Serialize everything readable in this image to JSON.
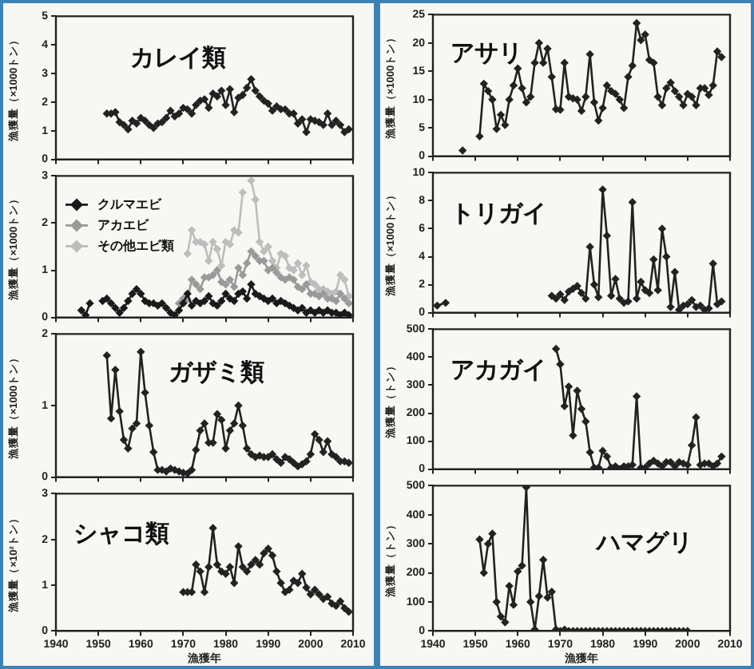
{
  "chart_data": [
    {
      "type": "line",
      "title": "カレイ類",
      "ylabel": "漁獲量（×1000トン）",
      "xlim": [
        1940,
        2010
      ],
      "xticks": [
        1940,
        1950,
        1960,
        1970,
        1980,
        1990,
        2000,
        2010
      ],
      "ylim": [
        0,
        5
      ],
      "yticks": [
        0,
        1,
        2,
        3,
        4,
        5
      ],
      "tick_labels": "y",
      "marker": "diamond",
      "color": "#222222",
      "x": [
        1952,
        1953,
        1954,
        1955,
        1956,
        1957,
        1958,
        1959,
        1960,
        1961,
        1962,
        1963,
        1964,
        1965,
        1966,
        1967,
        1968,
        1969,
        1970,
        1971,
        1972,
        1973,
        1974,
        1975,
        1976,
        1977,
        1978,
        1979,
        1980,
        1981,
        1982,
        1983,
        1984,
        1985,
        1986,
        1987,
        1988,
        1989,
        1990,
        1991,
        1992,
        1993,
        1994,
        1995,
        1996,
        1997,
        1998,
        1999,
        2000,
        2001,
        2002,
        2003,
        2004,
        2005,
        2006,
        2007,
        2008,
        2009
      ],
      "values": [
        1.6,
        1.6,
        1.65,
        1.3,
        1.2,
        1.05,
        1.35,
        1.25,
        1.45,
        1.35,
        1.2,
        1.1,
        1.25,
        1.3,
        1.45,
        1.7,
        1.5,
        1.6,
        1.8,
        1.75,
        1.6,
        1.9,
        2.05,
        2.1,
        1.8,
        2.3,
        2.2,
        2.4,
        1.9,
        2.45,
        1.65,
        2.15,
        2.25,
        2.5,
        2.8,
        2.4,
        2.2,
        2.05,
        1.95,
        1.7,
        1.85,
        1.75,
        1.75,
        1.6,
        1.6,
        1.25,
        1.4,
        0.95,
        1.4,
        1.35,
        1.3,
        1.2,
        1.6,
        1.2,
        1.35,
        1.2,
        0.95,
        1.05
      ]
    },
    {
      "type": "line",
      "ylabel": "漁獲量（×1000トン）",
      "xlim": [
        1940,
        2010
      ],
      "xticks": [
        1940,
        1950,
        1960,
        1970,
        1980,
        1990,
        2000,
        2010
      ],
      "ylim": [
        0,
        3
      ],
      "yticks": [
        0,
        1,
        2,
        3
      ],
      "tick_labels": "y",
      "marker": "diamond",
      "legend": "top left",
      "x": [
        1946,
        1947,
        1948,
        1949,
        1950,
        1951,
        1952,
        1953,
        1954,
        1955,
        1956,
        1957,
        1958,
        1959,
        1960,
        1961,
        1962,
        1963,
        1964,
        1965,
        1966,
        1967,
        1968,
        1969,
        1970,
        1971,
        1972,
        1973,
        1974,
        1975,
        1976,
        1977,
        1978,
        1979,
        1980,
        1981,
        1982,
        1983,
        1984,
        1985,
        1986,
        1987,
        1988,
        1989,
        1990,
        1991,
        1992,
        1993,
        1994,
        1995,
        1996,
        1997,
        1998,
        1999,
        2000,
        2001,
        2002,
        2003,
        2004,
        2005,
        2006,
        2007,
        2008,
        2009
      ],
      "series": [
        {
          "name": "クルマエビ",
          "color": "#1a1a1a",
          "values": [
            0.15,
            0.05,
            0.3,
            null,
            null,
            0.35,
            0.4,
            0.3,
            0.2,
            0.1,
            0.2,
            0.35,
            0.5,
            0.6,
            0.5,
            0.35,
            0.3,
            0.3,
            0.25,
            0.3,
            0.2,
            0.1,
            0.05,
            0.15,
            0.3,
            0.5,
            0.25,
            0.35,
            0.3,
            0.35,
            0.45,
            0.3,
            0.25,
            0.35,
            0.5,
            0.4,
            0.35,
            0.5,
            0.55,
            0.4,
            0.7,
            0.5,
            0.45,
            0.4,
            0.35,
            0.4,
            0.3,
            0.35,
            0.3,
            0.25,
            0.2,
            0.15,
            0.2,
            0.1,
            0.15,
            0.1,
            0.15,
            0.1,
            0.15,
            0.1,
            0.1,
            0.05,
            0.1,
            0.05
          ]
        },
        {
          "name": "アカエビ",
          "color": "#9a9a9a",
          "values": [
            null,
            null,
            null,
            null,
            null,
            null,
            null,
            null,
            null,
            null,
            null,
            null,
            null,
            null,
            null,
            null,
            null,
            null,
            null,
            null,
            null,
            null,
            null,
            0.3,
            0.4,
            0.38,
            0.8,
            0.7,
            0.6,
            0.85,
            0.85,
            0.9,
            1.0,
            0.75,
            0.7,
            0.8,
            0.65,
            1.05,
            0.9,
            1.15,
            1.4,
            1.3,
            1.2,
            1.2,
            1.0,
            1.05,
            0.95,
            0.85,
            0.8,
            0.85,
            0.8,
            0.65,
            0.6,
            0.7,
            0.5,
            0.5,
            0.45,
            0.5,
            0.4,
            0.4,
            0.35,
            0.5,
            0.4,
            0.3
          ]
        },
        {
          "name": "その他エビ類",
          "color": "#bdbdbd",
          "values": [
            null,
            null,
            null,
            null,
            null,
            null,
            null,
            null,
            null,
            null,
            null,
            null,
            null,
            null,
            null,
            null,
            null,
            null,
            null,
            null,
            null,
            null,
            null,
            null,
            null,
            1.35,
            1.85,
            1.6,
            1.6,
            1.55,
            1.2,
            1.6,
            1.45,
            1.1,
            1.6,
            1.55,
            1.85,
            1.8,
            2.65,
            null,
            2.9,
            2.5,
            1.6,
            1.4,
            1.5,
            1.2,
            1.05,
            1.35,
            1.3,
            1.05,
            1.0,
            1.15,
            0.9,
            1.1,
            0.75,
            0.7,
            0.6,
            0.6,
            0.55,
            0.5,
            0.55,
            0.9,
            0.8,
            0.45
          ]
        }
      ]
    },
    {
      "type": "line",
      "title": "ガザミ類",
      "ylabel": "漁獲量（×1000トン）",
      "xlim": [
        1940,
        2010
      ],
      "xticks": [
        1940,
        1950,
        1960,
        1970,
        1980,
        1990,
        2000,
        2010
      ],
      "ylim": [
        0,
        2
      ],
      "yticks": [
        0,
        1,
        2
      ],
      "tick_labels": "y",
      "marker": "diamond",
      "color": "#222222",
      "x": [
        1952,
        1953,
        1954,
        1955,
        1956,
        1957,
        1958,
        1959,
        1960,
        1961,
        1962,
        1963,
        1964,
        1965,
        1966,
        1967,
        1968,
        1969,
        1970,
        1971,
        1972,
        1973,
        1974,
        1975,
        1976,
        1977,
        1978,
        1979,
        1980,
        1981,
        1982,
        1983,
        1984,
        1985,
        1986,
        1987,
        1988,
        1989,
        1990,
        1991,
        1992,
        1993,
        1994,
        1995,
        1996,
        1997,
        1998,
        1999,
        2000,
        2001,
        2002,
        2003,
        2004,
        2005,
        2006,
        2007,
        2008,
        2009
      ],
      "values": [
        1.7,
        0.82,
        1.5,
        0.92,
        0.52,
        0.4,
        0.68,
        0.75,
        1.75,
        1.18,
        0.72,
        0.35,
        0.1,
        0.1,
        0.08,
        0.12,
        0.1,
        0.08,
        0.06,
        0.05,
        0.1,
        0.38,
        0.65,
        0.75,
        0.48,
        0.48,
        0.88,
        0.8,
        0.4,
        0.65,
        0.75,
        1.0,
        0.72,
        0.4,
        0.32,
        0.28,
        0.3,
        0.28,
        0.28,
        0.32,
        0.25,
        0.2,
        0.28,
        0.25,
        0.2,
        0.15,
        0.18,
        0.22,
        0.32,
        0.6,
        0.52,
        0.35,
        0.5,
        0.32,
        0.28,
        0.22,
        0.22,
        0.2
      ]
    },
    {
      "type": "line",
      "title": "シャコ類",
      "ylabel": "漁獲量（×10²トン）",
      "xlabel": "漁獲年",
      "xlim": [
        1940,
        2010
      ],
      "xticks": [
        1940,
        1950,
        1960,
        1970,
        1980,
        1990,
        2000,
        2010
      ],
      "ylim": [
        0,
        3
      ],
      "yticks": [
        0,
        1,
        2,
        3
      ],
      "marker": "diamond",
      "color": "#222222",
      "x": [
        1970,
        1971,
        1972,
        1973,
        1974,
        1975,
        1976,
        1977,
        1978,
        1979,
        1980,
        1981,
        1982,
        1983,
        1984,
        1985,
        1986,
        1987,
        1988,
        1989,
        1990,
        1991,
        1992,
        1993,
        1994,
        1995,
        1996,
        1997,
        1998,
        1999,
        2000,
        2001,
        2002,
        2003,
        2004,
        2005,
        2006,
        2007,
        2008,
        2009
      ],
      "values": [
        0.85,
        0.85,
        0.85,
        1.45,
        1.3,
        0.85,
        1.4,
        2.25,
        1.45,
        1.3,
        1.25,
        1.4,
        1.05,
        1.85,
        1.4,
        1.3,
        1.45,
        1.55,
        1.45,
        1.7,
        1.8,
        1.65,
        1.3,
        1.05,
        0.85,
        0.9,
        1.1,
        1.05,
        1.25,
        0.95,
        0.8,
        0.9,
        0.8,
        0.7,
        0.75,
        0.6,
        0.55,
        0.65,
        0.5,
        0.42
      ]
    },
    {
      "type": "line",
      "title": "アサリ",
      "ylabel": "漁獲量（×1000トン）",
      "xlim": [
        1940,
        2010
      ],
      "xticks": [
        1940,
        1950,
        1960,
        1970,
        1980,
        1990,
        2000,
        2010
      ],
      "ylim": [
        0,
        25
      ],
      "yticks": [
        0,
        5,
        10,
        15,
        20,
        25
      ],
      "tick_labels": "y",
      "marker": "diamond",
      "color": "#222222",
      "x": [
        1947,
        1948,
        1949,
        1950,
        1951,
        1952,
        1953,
        1954,
        1955,
        1956,
        1957,
        1958,
        1959,
        1960,
        1961,
        1962,
        1963,
        1964,
        1965,
        1966,
        1967,
        1968,
        1969,
        1970,
        1971,
        1972,
        1973,
        1974,
        1975,
        1976,
        1977,
        1978,
        1979,
        1980,
        1981,
        1982,
        1983,
        1984,
        1985,
        1986,
        1987,
        1988,
        1989,
        1990,
        1991,
        1992,
        1993,
        1994,
        1995,
        1996,
        1997,
        1998,
        1999,
        2000,
        2001,
        2002,
        2003,
        2004,
        2005,
        2006,
        2007,
        2008
      ],
      "values": [
        1.0,
        null,
        null,
        null,
        3.5,
        12.8,
        11.5,
        10,
        4.8,
        7.3,
        5.5,
        10,
        12.5,
        15.5,
        12,
        9.5,
        10.5,
        16.5,
        20,
        16.5,
        19,
        14,
        8.3,
        8.2,
        16.5,
        10.5,
        10.2,
        10,
        8,
        10.5,
        18,
        9.5,
        6.3,
        8.5,
        12.5,
        11.5,
        11,
        10,
        8.5,
        14,
        16,
        23.5,
        20.5,
        21.5,
        17,
        16.5,
        10.5,
        9,
        12,
        13,
        11.5,
        10.5,
        9,
        11,
        10.5,
        9,
        12,
        12,
        10.8,
        12.5,
        18.5,
        17.5
      ]
    },
    {
      "type": "line",
      "title": "トリガイ",
      "ylabel": "漁獲量（×1000トン）",
      "xlim": [
        1940,
        2010
      ],
      "xticks": [
        1940,
        1950,
        1960,
        1970,
        1980,
        1990,
        2000,
        2010
      ],
      "ylim": [
        0,
        10
      ],
      "yticks": [
        0,
        2,
        4,
        6,
        8,
        10
      ],
      "tick_labels": "y",
      "marker": "diamond",
      "color": "#222222",
      "x": [
        1941,
        1943,
        1944,
        1968,
        1969,
        1970,
        1971,
        1972,
        1973,
        1974,
        1975,
        1976,
        1977,
        1978,
        1979,
        1980,
        1981,
        1982,
        1983,
        1984,
        1985,
        1986,
        1987,
        1988,
        1989,
        1990,
        1991,
        1992,
        1993,
        1994,
        1995,
        1996,
        1997,
        1998,
        1999,
        2000,
        2001,
        2002,
        2003,
        2004,
        2005,
        2006,
        2007,
        2008
      ],
      "values": [
        0.5,
        0.7,
        null,
        1.2,
        1.0,
        1.3,
        0.9,
        1.5,
        1.7,
        1.9,
        1.4,
        1.0,
        4.7,
        2.0,
        1.1,
        8.8,
        5.5,
        1.2,
        2.4,
        1.0,
        0.7,
        0.8,
        7.9,
        1.0,
        2.2,
        1.6,
        1.4,
        3.8,
        1.6,
        6.0,
        4.0,
        0.4,
        2.9,
        0.2,
        0.5,
        0.6,
        0.9,
        0.4,
        0.5,
        0.2,
        0.3,
        3.5,
        0.6,
        0.8
      ]
    },
    {
      "type": "line",
      "title": "アカガイ",
      "ylabel": "漁獲量（トン）",
      "xlim": [
        1940,
        2010
      ],
      "xticks": [
        1940,
        1950,
        1960,
        1970,
        1980,
        1990,
        2000,
        2010
      ],
      "ylim": [
        0,
        500
      ],
      "yticks": [
        0,
        100,
        200,
        300,
        400,
        500
      ],
      "tick_labels": "y",
      "marker": "diamond",
      "color": "#222222",
      "x": [
        1969,
        1970,
        1971,
        1972,
        1973,
        1974,
        1975,
        1976,
        1977,
        1978,
        1979,
        1980,
        1981,
        1982,
        1983,
        1984,
        1985,
        1986,
        1987,
        1988,
        1989,
        1990,
        1991,
        1992,
        1993,
        1994,
        1995,
        1996,
        1997,
        1998,
        1999,
        2000,
        2001,
        2002,
        2003,
        2004,
        2005,
        2006,
        2007,
        2008
      ],
      "values": [
        430,
        375,
        225,
        295,
        120,
        280,
        215,
        170,
        60,
        5,
        5,
        65,
        45,
        5,
        10,
        0,
        10,
        10,
        15,
        260,
        5,
        5,
        20,
        30,
        20,
        10,
        25,
        25,
        10,
        25,
        20,
        15,
        85,
        185,
        15,
        20,
        20,
        10,
        20,
        45
      ]
    },
    {
      "type": "line",
      "title": "ハマグリ",
      "ylabel": "漁獲量（トン）",
      "xlabel": "漁獲年",
      "xlim": [
        1940,
        2010
      ],
      "xticks": [
        1940,
        1950,
        1960,
        1970,
        1980,
        1990,
        2000,
        2010
      ],
      "ylim": [
        0,
        500
      ],
      "yticks": [
        0,
        100,
        200,
        300,
        400,
        500
      ],
      "marker": "diamond",
      "color": "#222222",
      "x": [
        1951,
        1952,
        1953,
        1954,
        1955,
        1956,
        1957,
        1958,
        1959,
        1960,
        1961,
        1962,
        1963,
        1964,
        1965,
        1966,
        1967,
        1968,
        1969,
        1970,
        1971,
        1972,
        1973,
        1974,
        1975,
        1976,
        1977,
        1978,
        1979,
        1980,
        1981,
        1982,
        1983,
        1984,
        1985,
        1986,
        1987,
        1988,
        1989,
        1990,
        1991,
        1992,
        1993,
        1994,
        1995,
        1996,
        1997,
        1998,
        1999,
        2000
      ],
      "values": [
        315,
        200,
        300,
        335,
        100,
        50,
        30,
        155,
        90,
        205,
        225,
        495,
        100,
        5,
        120,
        245,
        115,
        135,
        5,
        0,
        5,
        0,
        0,
        0,
        0,
        0,
        0,
        0,
        0,
        0,
        0,
        0,
        0,
        0,
        0,
        0,
        0,
        0,
        0,
        0,
        0,
        0,
        0,
        0,
        0,
        0,
        0,
        0,
        0,
        0
      ]
    }
  ]
}
